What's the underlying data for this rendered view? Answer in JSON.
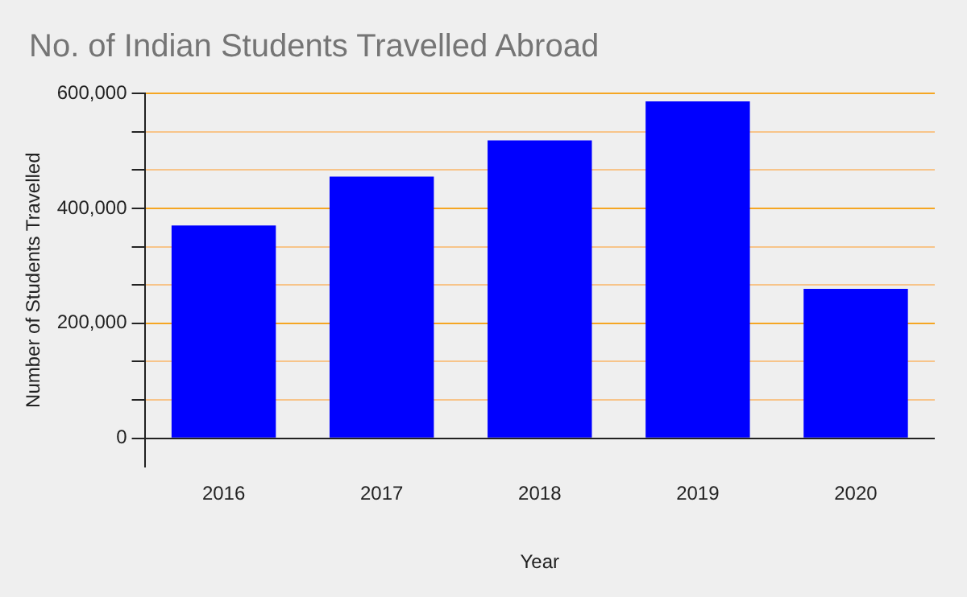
{
  "chart_data": {
    "type": "bar",
    "title": "No. of Indian Students Travelled Abroad",
    "xlabel": "Year",
    "ylabel": "Number of Students Travelled",
    "categories": [
      "2016",
      "2017",
      "2018",
      "2019",
      "2020"
    ],
    "values": [
      370000,
      455000,
      518000,
      586000,
      260000
    ],
    "color": "#0000ff",
    "ylim": [
      -50000,
      600000
    ],
    "yticks": [
      0,
      {
        "value": 66667,
        "label": null
      },
      {
        "value": 133333,
        "label": null
      },
      {
        "value": 200000,
        "label": "200,000"
      },
      {
        "value": 266667,
        "label": null
      },
      {
        "value": 333333,
        "label": null
      },
      {
        "value": 400000,
        "label": "400,000"
      },
      {
        "value": 466667,
        "label": null
      },
      {
        "value": 533333,
        "label": null
      },
      {
        "value": 600000,
        "label": "600,000"
      }
    ],
    "grid": "y",
    "legend": false
  }
}
